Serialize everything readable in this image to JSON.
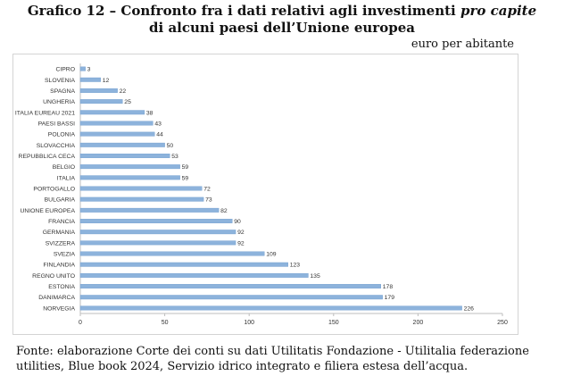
{
  "header": {
    "title_prefix": "Grafico 12 – Confronto fra i dati relativi agli investimenti ",
    "title_italic": "pro capite",
    "title_line2": "di alcuni paesi dell’Unione europea",
    "unit": "euro per abitante"
  },
  "source_note": "Fonte: elaborazione Corte dei conti su dati Utilitatis Fondazione - Utilitalia federazione utilities, Blue book 2024, Servizio idrico integrato e filiera estesa dell’acqua.",
  "colors": {
    "bar": "#8db3dc",
    "bar_edge": "#6f9ccd",
    "axis": "#bdbdbd"
  },
  "chart_data": {
    "type": "bar",
    "orientation": "horizontal",
    "categories": [
      "CIPRO",
      "SLOVENIA",
      "SPAGNA",
      "UNGHERIA",
      "ITALIA EUREAU 2021",
      "PAESI BASSI",
      "POLONIA",
      "SLOVACCHIA",
      "REPUBBLICA CECA",
      "BELGIO",
      "ITALIA",
      "PORTOGALLO",
      "BULGARIA",
      "UNIONE EUROPEA",
      "FRANCIA",
      "GERMANIA",
      "SVIZZERA",
      "SVEZIA",
      "FINLANDIA",
      "REGNO UNITO",
      "ESTONIA",
      "DANIMARCA",
      "NORVEGIA"
    ],
    "values": [
      3,
      12,
      22,
      25,
      38,
      43,
      44,
      50,
      53,
      59,
      59,
      72,
      73,
      82,
      90,
      92,
      92,
      109,
      123,
      135,
      178,
      179,
      226
    ],
    "xlim": [
      0,
      250
    ],
    "xticks": [
      0,
      50,
      100,
      150,
      200,
      250
    ],
    "grid": false,
    "legend": "none"
  }
}
